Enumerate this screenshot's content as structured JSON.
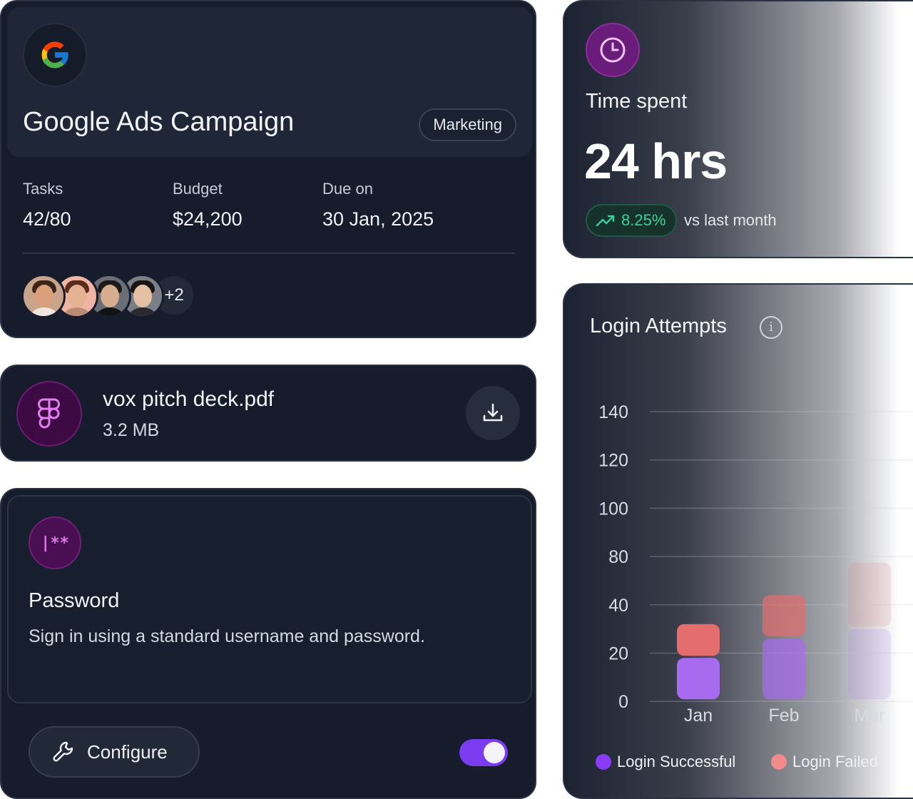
{
  "campaign": {
    "title": "Google Ads Campaign",
    "tag": "Marketing",
    "stats": [
      {
        "label": "Tasks",
        "value": "42/80"
      },
      {
        "label": "Budget",
        "value": "$24,200"
      },
      {
        "label": "Due on",
        "value": "30 Jan, 2025"
      }
    ],
    "extra_members": "+2"
  },
  "file": {
    "name": "vox pitch deck.pdf",
    "size": "3.2 MB",
    "icon": "figma-icon"
  },
  "password": {
    "icon_text": "|**",
    "title": "Password",
    "description": "Sign in using a standard username and password.",
    "configure_label": "Configure",
    "toggle_on": true
  },
  "time_spent": {
    "label": "Time spent",
    "value": "24 hrs",
    "trend": "8.25%",
    "trend_label": "vs last month",
    "trend_color": "#34d399"
  },
  "login_attempts": {
    "title": "Login Attempts",
    "legend": [
      {
        "label": "Login Successful",
        "color": "#8b3cf6"
      },
      {
        "label": "Login Failed",
        "color": "#f28b8b"
      }
    ]
  },
  "chart_data": {
    "type": "bar",
    "stacked": true,
    "title": "Login Attempts",
    "categories": [
      "Jan",
      "Feb",
      "Mar"
    ],
    "y_ticks": [
      0,
      20,
      40,
      80,
      100,
      120,
      140
    ],
    "series": [
      {
        "name": "Login Successful",
        "values": [
          18,
          26,
          30
        ],
        "color": "#a86bf0"
      },
      {
        "name": "Login Failed",
        "values": [
          14,
          22,
          45
        ],
        "color": "#e46e6e"
      }
    ],
    "grid": true,
    "legend_position": "bottom"
  }
}
